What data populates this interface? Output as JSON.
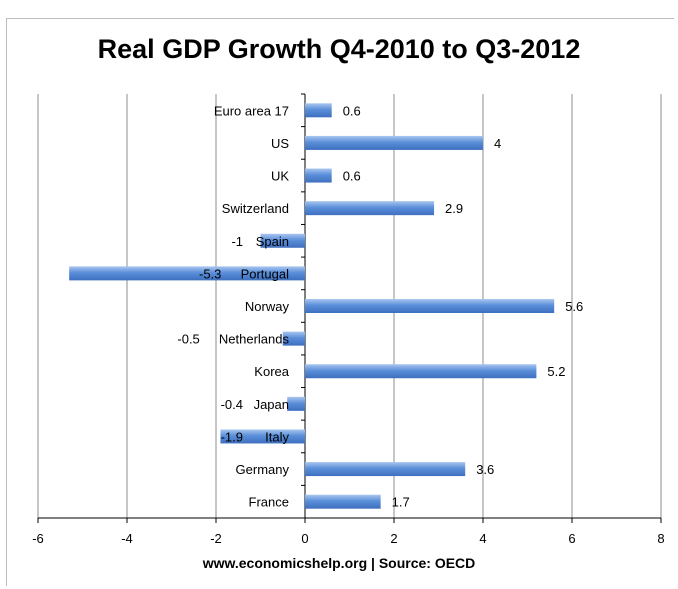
{
  "chart_data": {
    "type": "bar",
    "orientation": "horizontal",
    "title": "Real GDP Growth Q4-2010 to Q3-2012",
    "xlabel": "www.economicshelp.org | Source: OECD",
    "ylabel": "",
    "categories": [
      "Euro area 17",
      "US",
      "UK",
      "Switzerland",
      "Spain",
      "Portugal",
      "Norway",
      "Netherlands",
      "Korea",
      "Japan",
      "Italy",
      "Germany",
      "France"
    ],
    "values": [
      0.6,
      4,
      0.6,
      2.9,
      -1,
      -5.3,
      5.6,
      -0.5,
      5.2,
      -0.4,
      -1.9,
      3.6,
      1.7
    ],
    "value_labels": [
      "0.6",
      "4",
      "0.6",
      "2.9",
      "-1",
      "-5.3",
      "5.6",
      "-0.5",
      "5.2",
      "-0.4",
      "-1.9",
      "3.6",
      "1.7"
    ],
    "xlim": [
      -6,
      8
    ],
    "xticks": [
      -6,
      -4,
      -2,
      0,
      2,
      4,
      6,
      8
    ],
    "grid": "vertical",
    "legend": "none",
    "colors": {
      "bar": "#5b8fd9",
      "bar_light": "#a9c6f0",
      "bar_dark": "#3d6fbf",
      "grid": "#8c8c8c"
    }
  }
}
